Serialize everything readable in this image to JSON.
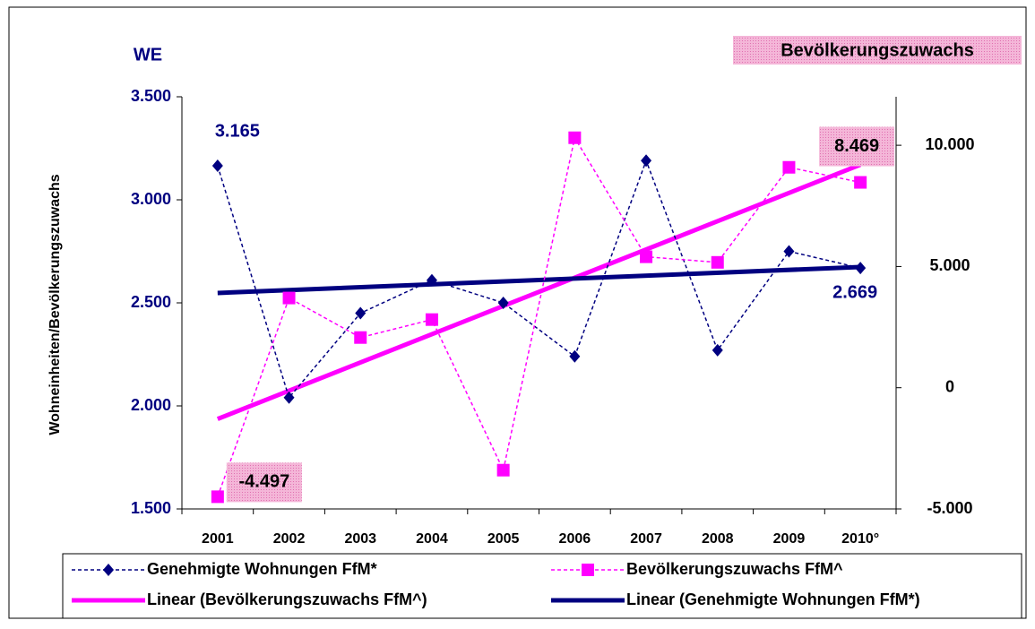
{
  "chart_data": {
    "type": "line",
    "left_axis_label": "WE",
    "right_axis_label": "Bevölkerungszuwachs",
    "ylabel": "Wohneinheiten/Bevölkerungszuwachs",
    "categories": [
      "2001",
      "2002",
      "2003",
      "2004",
      "2005",
      "2006",
      "2007",
      "2008",
      "2009",
      "2010°"
    ],
    "ylim": [
      1500,
      3500
    ],
    "yticks": [
      {
        "value": 1500,
        "label": "1.500"
      },
      {
        "value": 2000,
        "label": "2.000"
      },
      {
        "value": 2500,
        "label": "2.500"
      },
      {
        "value": 3000,
        "label": "3.000"
      },
      {
        "value": 3500,
        "label": "3.500"
      }
    ],
    "y2lim": [
      -5000,
      12000
    ],
    "y2ticks": [
      {
        "value": -5000,
        "label": "-5.000"
      },
      0,
      {
        "value": 5000,
        "label": "5.000"
      },
      {
        "value": 10000,
        "label": "10.000"
      }
    ],
    "series": [
      {
        "name": "Genehmigte Wohnungen FfM*",
        "color": "#000080",
        "marker": "diamond",
        "axis": "y",
        "values": [
          3165,
          2040,
          2450,
          2610,
          2500,
          2240,
          3190,
          2270,
          2750,
          2669
        ],
        "value_labels": [
          "3.165",
          null,
          null,
          null,
          null,
          null,
          null,
          null,
          null,
          "2.669"
        ]
      },
      {
        "name": "Bevölkerungszuwachs FfM^",
        "color": "#ff00ff",
        "marker": "square",
        "axis": "y2",
        "values": [
          -4497,
          3700,
          2070,
          2810,
          -3400,
          10310,
          5400,
          5170,
          9090,
          8469
        ],
        "value_labels": [
          "-4.497",
          null,
          null,
          null,
          null,
          null,
          null,
          null,
          null,
          "8.469"
        ]
      }
    ],
    "trendlines": [
      {
        "name": "Linear (Bevölkerungszuwachs FfM^)",
        "color": "#ff00ff",
        "axis": "y2",
        "values": [
          -1290,
          9200
        ]
      },
      {
        "name": "Linear (Genehmigte Wohnungen FfM*)",
        "color": "#000080",
        "axis": "y",
        "values": [
          2548,
          2674
        ]
      }
    ]
  }
}
